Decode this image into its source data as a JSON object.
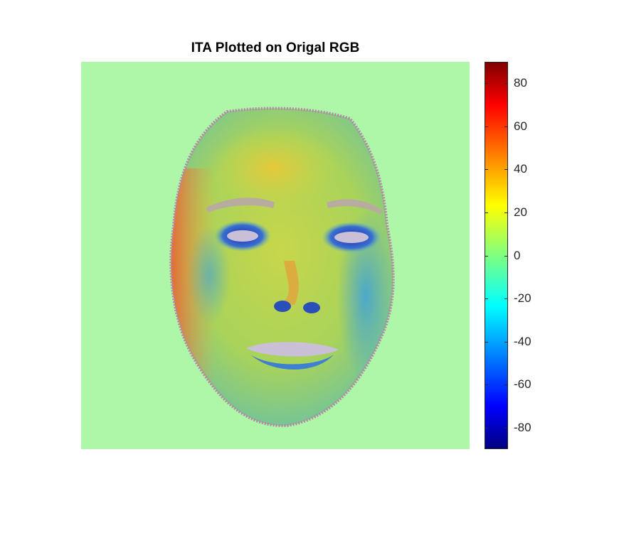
{
  "chart_data": {
    "type": "heatmap",
    "title": "ITA Plotted on Origal RGB",
    "xlabel": "",
    "ylabel": "",
    "colormap": "jet",
    "background_color": "#aef7a8",
    "colorbar": {
      "range": [
        -90,
        90
      ],
      "ticks": [
        80,
        60,
        40,
        20,
        0,
        -20,
        -40,
        -60,
        -80
      ],
      "tick_labels": [
        "80",
        "60",
        "40",
        "20",
        "0",
        "-20",
        "-40",
        "-60",
        "-80"
      ],
      "location": "right"
    },
    "image_description_regions": [
      {
        "region": "forehead",
        "approx_value": 15
      },
      {
        "region": "left cheek edge",
        "approx_value": 45
      },
      {
        "region": "eye sockets",
        "approx_value": -55
      },
      {
        "region": "nostrils",
        "approx_value": -60
      },
      {
        "region": "mouth",
        "approx_value": -40
      }
    ]
  }
}
